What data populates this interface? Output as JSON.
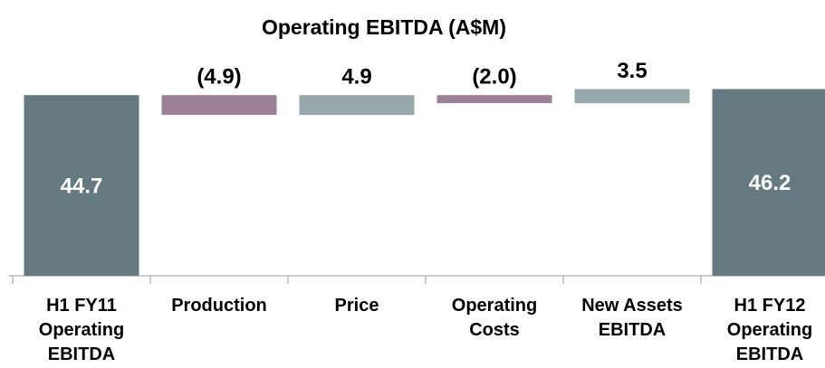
{
  "chart_data": {
    "type": "waterfall",
    "title": "Operating EBITDA  (A$M)",
    "categories": [
      "H1 FY11\nOperating\nEBITDA",
      "Production",
      "Price",
      "Operating\nCosts",
      "New Assets\nEBITDA",
      "H1 FY12\nOperating\nEBITDA"
    ],
    "values": [
      44.7,
      -4.9,
      4.9,
      -2.0,
      3.5,
      46.2
    ],
    "value_labels": [
      "44.7",
      "(4.9)",
      "4.9",
      "(2.0)",
      "3.5",
      "46.2"
    ],
    "measure": [
      "total",
      "relative",
      "relative",
      "relative",
      "relative",
      "total"
    ],
    "colors": {
      "total": "#647a80",
      "increase": "#97a8ab",
      "decrease": "#9b8097"
    },
    "ylim": [
      0,
      50
    ]
  }
}
